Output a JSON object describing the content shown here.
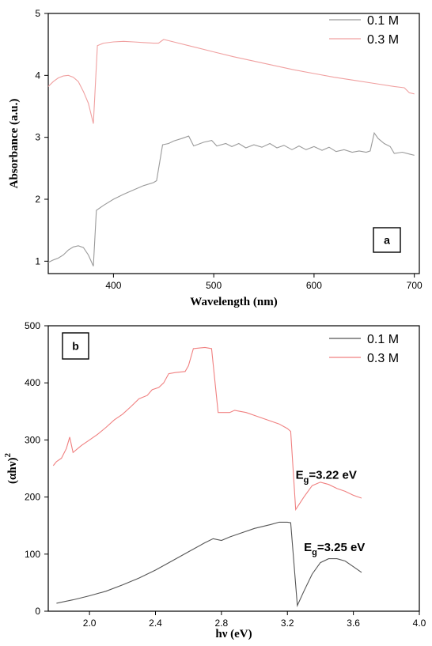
{
  "chart_data": [
    {
      "panel_label": "a",
      "type": "line",
      "xlabel": "Wavelength (nm)",
      "ylabel": "Absorbance (a.u.)",
      "xlim": [
        335,
        705
      ],
      "ylim": [
        0.8,
        5.0
      ],
      "x_ticks": [
        400,
        500,
        600,
        700
      ],
      "y_ticks": [
        1,
        2,
        3,
        4,
        5
      ],
      "legend_position": "top-right",
      "series": [
        {
          "name": "0.1 M",
          "color": "#9a9a9a",
          "points": [
            [
              335,
              0.98
            ],
            [
              340,
              1.02
            ],
            [
              345,
              1.05
            ],
            [
              350,
              1.1
            ],
            [
              355,
              1.18
            ],
            [
              360,
              1.23
            ],
            [
              365,
              1.25
            ],
            [
              370,
              1.22
            ],
            [
              375,
              1.1
            ],
            [
              380,
              0.92
            ],
            [
              383,
              1.82
            ],
            [
              390,
              1.9
            ],
            [
              400,
              2.0
            ],
            [
              410,
              2.08
            ],
            [
              420,
              2.15
            ],
            [
              430,
              2.22
            ],
            [
              440,
              2.27
            ],
            [
              443,
              2.3
            ],
            [
              449,
              2.88
            ],
            [
              455,
              2.9
            ],
            [
              460,
              2.94
            ],
            [
              468,
              2.98
            ],
            [
              475,
              3.02
            ],
            [
              480,
              2.86
            ],
            [
              490,
              2.92
            ],
            [
              498,
              2.95
            ],
            [
              503,
              2.86
            ],
            [
              512,
              2.9
            ],
            [
              518,
              2.85
            ],
            [
              525,
              2.9
            ],
            [
              532,
              2.83
            ],
            [
              540,
              2.88
            ],
            [
              548,
              2.84
            ],
            [
              556,
              2.9
            ],
            [
              563,
              2.83
            ],
            [
              570,
              2.87
            ],
            [
              578,
              2.8
            ],
            [
              585,
              2.86
            ],
            [
              592,
              2.8
            ],
            [
              600,
              2.85
            ],
            [
              608,
              2.79
            ],
            [
              615,
              2.84
            ],
            [
              622,
              2.77
            ],
            [
              630,
              2.8
            ],
            [
              638,
              2.76
            ],
            [
              645,
              2.78
            ],
            [
              652,
              2.76
            ],
            [
              656,
              2.78
            ],
            [
              660,
              3.07
            ],
            [
              664,
              2.98
            ],
            [
              670,
              2.9
            ],
            [
              676,
              2.85
            ],
            [
              680,
              2.74
            ],
            [
              688,
              2.76
            ],
            [
              695,
              2.73
            ],
            [
              700,
              2.71
            ]
          ]
        },
        {
          "name": "0.3 M",
          "color": "#f0a0a0",
          "points": [
            [
              335,
              3.82
            ],
            [
              340,
              3.9
            ],
            [
              345,
              3.96
            ],
            [
              350,
              3.99
            ],
            [
              355,
              4.0
            ],
            [
              360,
              3.97
            ],
            [
              365,
              3.9
            ],
            [
              370,
              3.74
            ],
            [
              375,
              3.55
            ],
            [
              380,
              3.22
            ],
            [
              384,
              4.48
            ],
            [
              390,
              4.52
            ],
            [
              400,
              4.54
            ],
            [
              410,
              4.55
            ],
            [
              420,
              4.54
            ],
            [
              430,
              4.53
            ],
            [
              440,
              4.52
            ],
            [
              445,
              4.52
            ],
            [
              450,
              4.58
            ],
            [
              460,
              4.54
            ],
            [
              480,
              4.46
            ],
            [
              500,
              4.38
            ],
            [
              520,
              4.3
            ],
            [
              540,
              4.23
            ],
            [
              560,
              4.16
            ],
            [
              580,
              4.09
            ],
            [
              600,
              4.03
            ],
            [
              620,
              3.97
            ],
            [
              640,
              3.92
            ],
            [
              660,
              3.87
            ],
            [
              680,
              3.82
            ],
            [
              690,
              3.8
            ],
            [
              695,
              3.72
            ],
            [
              700,
              3.7
            ]
          ]
        }
      ]
    },
    {
      "panel_label": "b",
      "type": "line",
      "xlabel": "hν (eV)",
      "ylabel": "(αhν)",
      "ylabel_superscript": "2",
      "xlim": [
        1.75,
        4.0
      ],
      "ylim": [
        0,
        500
      ],
      "x_ticks": [
        2.0,
        2.4,
        2.8,
        3.2,
        3.6,
        4.0
      ],
      "y_ticks": [
        0,
        100,
        200,
        300,
        400,
        500
      ],
      "legend_position": "top-right",
      "annotations": [
        {
          "main": "E",
          "sub": "g",
          "rest": "=3.22 eV",
          "x": 3.25,
          "y": 232
        },
        {
          "main": "E",
          "sub": "g",
          "rest": "=3.25 eV",
          "x": 3.3,
          "y": 105
        }
      ],
      "series": [
        {
          "name": "0.1 M",
          "color": "#555555",
          "points": [
            [
              1.8,
              14
            ],
            [
              1.9,
              20
            ],
            [
              2.0,
              27
            ],
            [
              2.1,
              35
            ],
            [
              2.2,
              46
            ],
            [
              2.3,
              58
            ],
            [
              2.4,
              72
            ],
            [
              2.5,
              88
            ],
            [
              2.6,
              104
            ],
            [
              2.7,
              120
            ],
            [
              2.75,
              127
            ],
            [
              2.8,
              124
            ],
            [
              2.85,
              130
            ],
            [
              2.9,
              135
            ],
            [
              3.0,
              145
            ],
            [
              3.1,
              152
            ],
            [
              3.15,
              156
            ],
            [
              3.2,
              156
            ],
            [
              3.22,
              155
            ],
            [
              3.26,
              10
            ],
            [
              3.3,
              35
            ],
            [
              3.35,
              65
            ],
            [
              3.4,
              85
            ],
            [
              3.45,
              92
            ],
            [
              3.5,
              92
            ],
            [
              3.55,
              88
            ],
            [
              3.6,
              78
            ],
            [
              3.65,
              68
            ]
          ]
        },
        {
          "name": "0.3 M",
          "color": "#f08080",
          "points": [
            [
              1.78,
              255
            ],
            [
              1.8,
              262
            ],
            [
              1.83,
              268
            ],
            [
              1.86,
              285
            ],
            [
              1.88,
              305
            ],
            [
              1.9,
              278
            ],
            [
              1.95,
              290
            ],
            [
              2.0,
              300
            ],
            [
              2.05,
              310
            ],
            [
              2.1,
              322
            ],
            [
              2.15,
              335
            ],
            [
              2.2,
              345
            ],
            [
              2.25,
              358
            ],
            [
              2.3,
              372
            ],
            [
              2.35,
              378
            ],
            [
              2.38,
              388
            ],
            [
              2.42,
              392
            ],
            [
              2.45,
              400
            ],
            [
              2.48,
              416
            ],
            [
              2.52,
              418
            ],
            [
              2.58,
              420
            ],
            [
              2.6,
              430
            ],
            [
              2.63,
              460
            ],
            [
              2.7,
              462
            ],
            [
              2.74,
              460
            ],
            [
              2.78,
              348
            ],
            [
              2.85,
              348
            ],
            [
              2.88,
              352
            ],
            [
              2.95,
              348
            ],
            [
              3.0,
              343
            ],
            [
              3.05,
              338
            ],
            [
              3.1,
              333
            ],
            [
              3.15,
              328
            ],
            [
              3.2,
              320
            ],
            [
              3.22,
              315
            ],
            [
              3.25,
              178
            ],
            [
              3.3,
              200
            ],
            [
              3.35,
              220
            ],
            [
              3.4,
              226
            ],
            [
              3.45,
              222
            ],
            [
              3.5,
              215
            ],
            [
              3.55,
              210
            ],
            [
              3.6,
              203
            ],
            [
              3.65,
              198
            ]
          ]
        }
      ]
    }
  ]
}
